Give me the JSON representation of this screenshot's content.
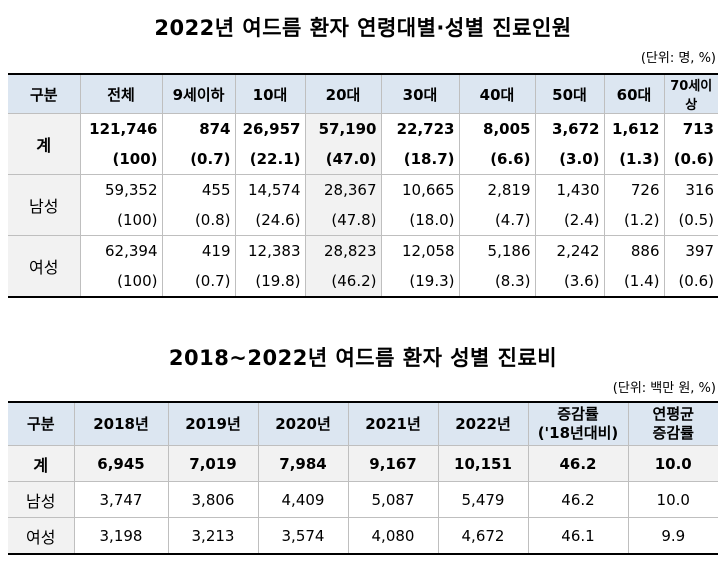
{
  "table1": {
    "title": "2022년 여드름 환자 연령대별·성별 진료인원",
    "unit": "(단위: 명, %)",
    "headers": [
      "구분",
      "전체",
      "9세이하",
      "10대",
      "20대",
      "30대",
      "40대",
      "50대",
      "60대",
      "70세이상"
    ],
    "rows": [
      {
        "label": "계",
        "counts": [
          "121,746",
          "874",
          "26,957",
          "57,190",
          "22,723",
          "8,005",
          "3,672",
          "1,612",
          "713"
        ],
        "pcts": [
          "(100)",
          "(0.7)",
          "(22.1)",
          "(47.0)",
          "(18.7)",
          "(6.6)",
          "(3.0)",
          "(1.3)",
          "(0.6)"
        ]
      },
      {
        "label": "남성",
        "counts": [
          "59,352",
          "455",
          "14,574",
          "28,367",
          "10,665",
          "2,819",
          "1,430",
          "726",
          "316"
        ],
        "pcts": [
          "(100)",
          "(0.8)",
          "(24.6)",
          "(47.8)",
          "(18.0)",
          "(4.7)",
          "(2.4)",
          "(1.2)",
          "(0.5)"
        ]
      },
      {
        "label": "여성",
        "counts": [
          "62,394",
          "419",
          "12,383",
          "28,823",
          "12,058",
          "5,186",
          "2,242",
          "886",
          "397"
        ],
        "pcts": [
          "(100)",
          "(0.7)",
          "(19.8)",
          "(46.2)",
          "(19.3)",
          "(8.3)",
          "(3.6)",
          "(1.4)",
          "(0.6)"
        ]
      }
    ]
  },
  "table2": {
    "title": "2018~2022년 여드름 환자 성별 진료비",
    "unit": "(단위: 백만 원, %)",
    "headers": [
      "구분",
      "2018년",
      "2019년",
      "2020년",
      "2021년",
      "2022년"
    ],
    "growth_header": [
      "증감률",
      "('18년대비)"
    ],
    "avg_header": [
      "연평균",
      "증감률"
    ],
    "rows": [
      {
        "label": "계",
        "values": [
          "6,945",
          "7,019",
          "7,984",
          "9,167",
          "10,151",
          "46.2",
          "10.0"
        ]
      },
      {
        "label": "남성",
        "values": [
          "3,747",
          "3,806",
          "4,409",
          "5,087",
          "5,479",
          "46.2",
          "10.0"
        ]
      },
      {
        "label": "여성",
        "values": [
          "3,198",
          "3,213",
          "3,574",
          "4,080",
          "4,672",
          "46.1",
          "9.9"
        ]
      }
    ]
  }
}
